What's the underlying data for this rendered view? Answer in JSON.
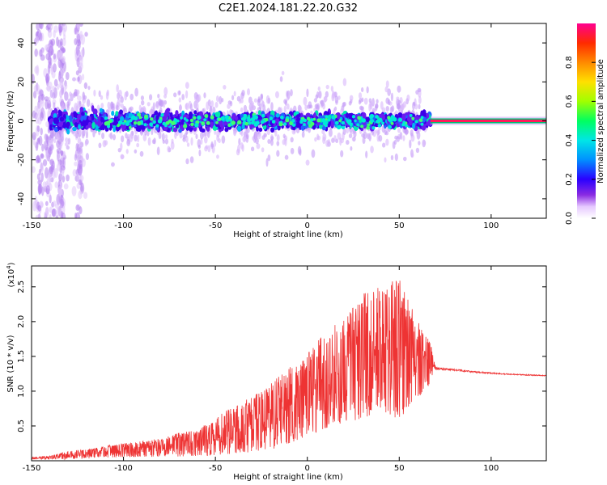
{
  "title": "C2E1.2024.181.22.20.G32",
  "chart_data": [
    {
      "type": "heatmap",
      "title": "",
      "xlabel": "Height of straight line (km)",
      "ylabel": "Frequency (Hz)",
      "xlim": [
        -150,
        130
      ],
      "ylim": [
        -50,
        50
      ],
      "xticks": [
        -150,
        -100,
        -50,
        0,
        50,
        100
      ],
      "yticks": [
        -40,
        -20,
        0,
        20,
        40
      ],
      "colorbar": {
        "label": "Normalized spectral amplitude",
        "range": [
          0,
          1
        ],
        "ticks": [
          0.0,
          0.2,
          0.4,
          0.6,
          0.8
        ],
        "colormap": "rainbow-purple-white"
      },
      "description_values": {
        "main_band_center_hz": 0,
        "main_band_halfwidth_hz_start": 8,
        "main_band_halfwidth_hz_end": 5,
        "stable_line_from_km": 67,
        "stable_line_amplitude": 0.9
      }
    },
    {
      "type": "line",
      "title": "",
      "xlabel": "Height of straight line (km)",
      "ylabel": "SNR (10 * v/v)",
      "yscale_label": "(x10",
      "yscale_exp": "4",
      "yscale_suffix": ")",
      "xlim": [
        -150,
        130
      ],
      "ylim": [
        0,
        2.8
      ],
      "xticks": [
        -150,
        -100,
        -50,
        0,
        50,
        100
      ],
      "yticks": [
        "0.5",
        "1.0",
        "1.5",
        "2.0",
        "2.5"
      ],
      "series": [
        {
          "color": "#ee3333",
          "envelope_x": [
            -150,
            -140,
            -130,
            -120,
            -110,
            -100,
            -90,
            -80,
            -70,
            -60,
            -50,
            -40,
            -30,
            -20,
            -10,
            0,
            10,
            20,
            30,
            40,
            50,
            60,
            67,
            70,
            80,
            90,
            100,
            110,
            120,
            130
          ],
          "envelope_y": [
            0.05,
            0.07,
            0.14,
            0.16,
            0.22,
            0.25,
            0.28,
            0.32,
            0.4,
            0.45,
            0.62,
            0.8,
            0.92,
            1.1,
            1.35,
            1.55,
            1.85,
            2.05,
            2.45,
            2.55,
            2.65,
            2.0,
            1.75,
            1.35,
            1.32,
            1.29,
            1.27,
            1.25,
            1.24,
            1.23
          ],
          "floor_y": [
            0.02,
            0.02,
            0.02,
            0.03,
            0.04,
            0.05,
            0.05,
            0.06,
            0.06,
            0.07,
            0.08,
            0.1,
            0.12,
            0.15,
            0.25,
            0.35,
            0.45,
            0.55,
            0.6,
            0.7,
            0.6,
            0.9,
            1.1,
            1.28,
            1.28,
            1.26,
            1.24,
            1.23,
            1.22,
            1.21
          ],
          "tail_level_from_km": 68
        }
      ]
    }
  ]
}
